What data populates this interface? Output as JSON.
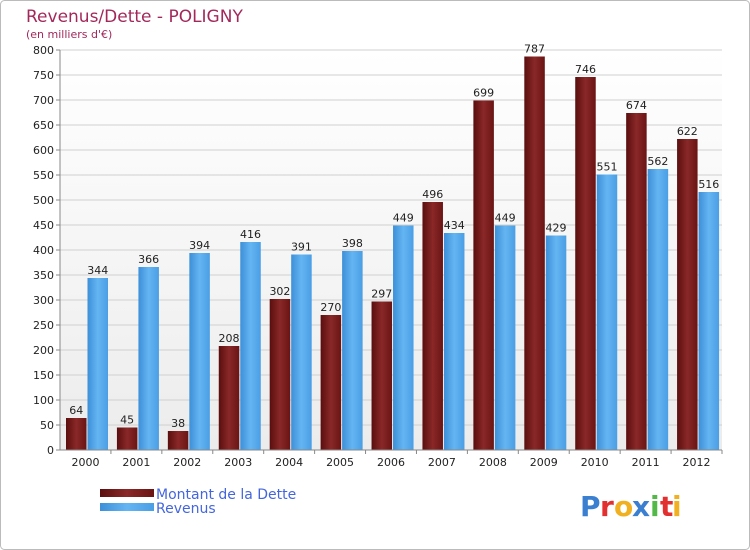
{
  "chart_data": {
    "type": "bar",
    "title": "Revenus/Dette - POLIGNY",
    "subtitle": "(en milliers d'€)",
    "categories": [
      "2000",
      "2001",
      "2002",
      "2003",
      "2004",
      "2005",
      "2006",
      "2007",
      "2008",
      "2009",
      "2010",
      "2011",
      "2012"
    ],
    "series": [
      {
        "name": "Montant de la Dette",
        "color": "#7a1a1a",
        "values": [
          64,
          45,
          38,
          208,
          302,
          270,
          297,
          496,
          699,
          787,
          746,
          674,
          622
        ]
      },
      {
        "name": "Revenus",
        "color": "#4ea3e8",
        "values": [
          344,
          366,
          394,
          416,
          391,
          398,
          449,
          434,
          449,
          429,
          551,
          562,
          516
        ]
      }
    ],
    "ylim": [
      0,
      800
    ],
    "yticks": [
      "0",
      "50",
      "100",
      "150",
      "200",
      "250",
      "300",
      "350",
      "400",
      "450",
      "500",
      "550",
      "600",
      "650",
      "700",
      "750",
      "800"
    ],
    "grid": true,
    "legend_position": "bottom-left"
  },
  "logo": {
    "letters": [
      "P",
      "r",
      "o",
      "x",
      "i",
      "t",
      "i"
    ],
    "colors": [
      "#3a7fd0",
      "#e23030",
      "#f0b020",
      "#3a7fd0",
      "#52b848",
      "#e23030",
      "#f0b020"
    ]
  }
}
